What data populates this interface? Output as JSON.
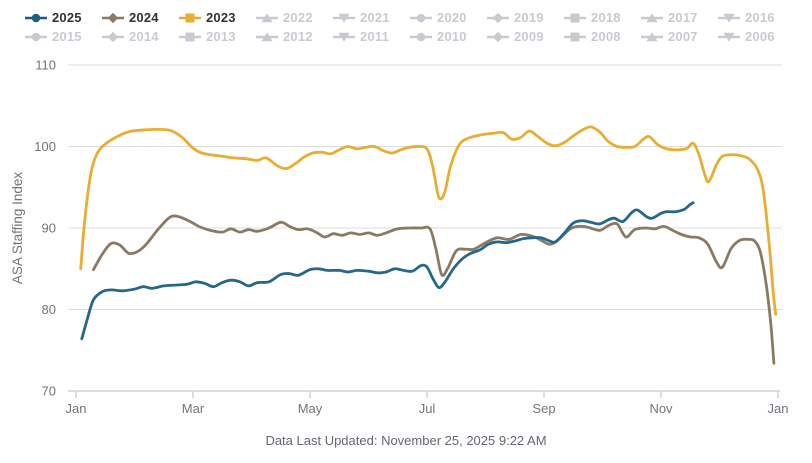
{
  "legend": {
    "active_text_color": "#2e3338",
    "inactive_color": "#c7cbd0",
    "items": [
      {
        "label": "2025",
        "marker": "circle",
        "color": "#1d5f7e",
        "active": true
      },
      {
        "label": "2024",
        "marker": "diamond",
        "color": "#8a7a63",
        "active": true
      },
      {
        "label": "2023",
        "marker": "square",
        "color": "#e9ad33",
        "active": true
      },
      {
        "label": "2022",
        "marker": "triangle-up",
        "color": "#c7cbd0",
        "active": false
      },
      {
        "label": "2021",
        "marker": "triangle-down",
        "color": "#c7cbd0",
        "active": false
      },
      {
        "label": "2020",
        "marker": "circle",
        "color": "#c7cbd0",
        "active": false
      },
      {
        "label": "2019",
        "marker": "diamond",
        "color": "#c7cbd0",
        "active": false
      },
      {
        "label": "2018",
        "marker": "square",
        "color": "#c7cbd0",
        "active": false
      },
      {
        "label": "2017",
        "marker": "triangle-up",
        "color": "#c7cbd0",
        "active": false
      },
      {
        "label": "2016",
        "marker": "triangle-down",
        "color": "#c7cbd0",
        "active": false
      },
      {
        "label": "2015",
        "marker": "circle",
        "color": "#c7cbd0",
        "active": false
      },
      {
        "label": "2014",
        "marker": "diamond",
        "color": "#c7cbd0",
        "active": false
      },
      {
        "label": "2013",
        "marker": "square",
        "color": "#c7cbd0",
        "active": false
      },
      {
        "label": "2012",
        "marker": "triangle-up",
        "color": "#c7cbd0",
        "active": false
      },
      {
        "label": "2011",
        "marker": "triangle-down",
        "color": "#c7cbd0",
        "active": false
      },
      {
        "label": "2010",
        "marker": "circle",
        "color": "#c7cbd0",
        "active": false
      },
      {
        "label": "2009",
        "marker": "diamond",
        "color": "#c7cbd0",
        "active": false
      },
      {
        "label": "2008",
        "marker": "square",
        "color": "#c7cbd0",
        "active": false
      },
      {
        "label": "2007",
        "marker": "triangle-up",
        "color": "#c7cbd0",
        "active": false
      },
      {
        "label": "2006",
        "marker": "triangle-down",
        "color": "#c7cbd0",
        "active": false
      }
    ]
  },
  "chart_data": {
    "type": "line",
    "title": "",
    "xlabel": "",
    "ylabel": "ASA Staffing Index",
    "ylim": [
      70,
      110
    ],
    "y_ticks": [
      70,
      80,
      90,
      100,
      110
    ],
    "x_tick_labels": [
      "Jan",
      "Mar",
      "May",
      "Jul",
      "Sep",
      "Nov",
      "Jan"
    ],
    "x_tick_months": [
      0,
      2,
      4,
      6,
      8,
      10,
      12
    ],
    "x_unit": "month offset within year (0 = Jan, 11.96 = late Dec)",
    "grid": "horizontal",
    "legend_position": "top",
    "axis_text_color": "#70757a",
    "gridline_color": "#dcdcdc",
    "axis_line_color": "#c8d2da",
    "series": [
      {
        "name": "2023",
        "color": "#e9ad33",
        "points": [
          [
            0.08,
            85.0
          ],
          [
            0.15,
            91.0
          ],
          [
            0.25,
            96.5
          ],
          [
            0.35,
            99.0
          ],
          [
            0.5,
            100.3
          ],
          [
            0.7,
            101.2
          ],
          [
            0.9,
            101.8
          ],
          [
            1.1,
            102.0
          ],
          [
            1.35,
            102.1
          ],
          [
            1.6,
            102.0
          ],
          [
            1.8,
            101.2
          ],
          [
            2.0,
            99.8
          ],
          [
            2.15,
            99.2
          ],
          [
            2.3,
            99.0
          ],
          [
            2.5,
            98.8
          ],
          [
            2.7,
            98.6
          ],
          [
            2.9,
            98.5
          ],
          [
            3.1,
            98.3
          ],
          [
            3.25,
            98.6
          ],
          [
            3.45,
            97.6
          ],
          [
            3.6,
            97.3
          ],
          [
            3.75,
            97.9
          ],
          [
            3.9,
            98.7
          ],
          [
            4.05,
            99.2
          ],
          [
            4.2,
            99.3
          ],
          [
            4.35,
            99.1
          ],
          [
            4.5,
            99.6
          ],
          [
            4.65,
            100.0
          ],
          [
            4.8,
            99.7
          ],
          [
            4.95,
            99.9
          ],
          [
            5.1,
            100.0
          ],
          [
            5.25,
            99.5
          ],
          [
            5.4,
            99.2
          ],
          [
            5.55,
            99.6
          ],
          [
            5.7,
            99.9
          ],
          [
            5.85,
            100.0
          ],
          [
            6.0,
            99.7
          ],
          [
            6.1,
            97.5
          ],
          [
            6.2,
            93.8
          ],
          [
            6.3,
            94.3
          ],
          [
            6.4,
            97.5
          ],
          [
            6.55,
            100.2
          ],
          [
            6.7,
            101.0
          ],
          [
            6.9,
            101.4
          ],
          [
            7.1,
            101.6
          ],
          [
            7.3,
            101.7
          ],
          [
            7.45,
            100.9
          ],
          [
            7.6,
            101.1
          ],
          [
            7.75,
            101.9
          ],
          [
            7.9,
            101.2
          ],
          [
            8.05,
            100.4
          ],
          [
            8.2,
            100.1
          ],
          [
            8.35,
            100.5
          ],
          [
            8.5,
            101.3
          ],
          [
            8.65,
            102.0
          ],
          [
            8.8,
            102.4
          ],
          [
            8.95,
            101.8
          ],
          [
            9.1,
            100.6
          ],
          [
            9.25,
            100.0
          ],
          [
            9.4,
            99.9
          ],
          [
            9.55,
            100.0
          ],
          [
            9.7,
            100.9
          ],
          [
            9.8,
            101.2
          ],
          [
            9.95,
            100.2
          ],
          [
            10.1,
            99.7
          ],
          [
            10.3,
            99.6
          ],
          [
            10.45,
            99.8
          ],
          [
            10.55,
            100.4
          ],
          [
            10.65,
            99.0
          ],
          [
            10.75,
            96.5
          ],
          [
            10.82,
            95.7
          ],
          [
            10.95,
            97.8
          ],
          [
            11.05,
            98.8
          ],
          [
            11.2,
            99.0
          ],
          [
            11.35,
            98.9
          ],
          [
            11.5,
            98.5
          ],
          [
            11.65,
            97.2
          ],
          [
            11.75,
            94.5
          ],
          [
            11.85,
            88.0
          ],
          [
            11.92,
            82.0
          ],
          [
            11.96,
            79.4
          ]
        ]
      },
      {
        "name": "2024",
        "color": "#8a7a63",
        "points": [
          [
            0.3,
            84.9
          ],
          [
            0.45,
            86.8
          ],
          [
            0.6,
            88.1
          ],
          [
            0.75,
            87.9
          ],
          [
            0.9,
            86.9
          ],
          [
            1.05,
            87.1
          ],
          [
            1.2,
            88.0
          ],
          [
            1.4,
            89.8
          ],
          [
            1.6,
            91.3
          ],
          [
            1.75,
            91.4
          ],
          [
            1.95,
            90.8
          ],
          [
            2.1,
            90.2
          ],
          [
            2.3,
            89.7
          ],
          [
            2.5,
            89.5
          ],
          [
            2.65,
            89.9
          ],
          [
            2.8,
            89.5
          ],
          [
            2.95,
            89.8
          ],
          [
            3.1,
            89.6
          ],
          [
            3.3,
            90.0
          ],
          [
            3.5,
            90.7
          ],
          [
            3.65,
            90.2
          ],
          [
            3.8,
            89.8
          ],
          [
            3.95,
            89.9
          ],
          [
            4.1,
            89.5
          ],
          [
            4.25,
            88.9
          ],
          [
            4.4,
            89.3
          ],
          [
            4.55,
            89.1
          ],
          [
            4.7,
            89.4
          ],
          [
            4.85,
            89.2
          ],
          [
            5.0,
            89.4
          ],
          [
            5.15,
            89.1
          ],
          [
            5.3,
            89.4
          ],
          [
            5.5,
            89.9
          ],
          [
            5.7,
            90.0
          ],
          [
            5.9,
            90.0
          ],
          [
            6.05,
            89.9
          ],
          [
            6.15,
            87.5
          ],
          [
            6.25,
            84.3
          ],
          [
            6.35,
            85.0
          ],
          [
            6.5,
            87.2
          ],
          [
            6.65,
            87.4
          ],
          [
            6.8,
            87.4
          ],
          [
            7.0,
            88.2
          ],
          [
            7.2,
            88.8
          ],
          [
            7.4,
            88.6
          ],
          [
            7.6,
            89.2
          ],
          [
            7.8,
            89.0
          ],
          [
            7.95,
            88.5
          ],
          [
            8.1,
            88.0
          ],
          [
            8.25,
            88.6
          ],
          [
            8.45,
            89.9
          ],
          [
            8.6,
            90.2
          ],
          [
            8.75,
            90.1
          ],
          [
            8.95,
            89.7
          ],
          [
            9.1,
            90.3
          ],
          [
            9.25,
            90.5
          ],
          [
            9.4,
            88.9
          ],
          [
            9.55,
            89.8
          ],
          [
            9.75,
            90.0
          ],
          [
            9.9,
            89.9
          ],
          [
            10.05,
            90.2
          ],
          [
            10.2,
            89.7
          ],
          [
            10.35,
            89.2
          ],
          [
            10.5,
            88.9
          ],
          [
            10.65,
            88.8
          ],
          [
            10.8,
            88.0
          ],
          [
            10.95,
            85.8
          ],
          [
            11.05,
            85.2
          ],
          [
            11.2,
            87.5
          ],
          [
            11.35,
            88.5
          ],
          [
            11.5,
            88.6
          ],
          [
            11.6,
            88.4
          ],
          [
            11.7,
            87.0
          ],
          [
            11.8,
            83.0
          ],
          [
            11.88,
            78.0
          ],
          [
            11.93,
            73.4
          ]
        ]
      },
      {
        "name": "2025",
        "color": "#25688a",
        "points": [
          [
            0.1,
            76.4
          ],
          [
            0.2,
            79.0
          ],
          [
            0.3,
            81.2
          ],
          [
            0.45,
            82.2
          ],
          [
            0.6,
            82.4
          ],
          [
            0.8,
            82.3
          ],
          [
            1.0,
            82.5
          ],
          [
            1.15,
            82.8
          ],
          [
            1.3,
            82.6
          ],
          [
            1.5,
            82.9
          ],
          [
            1.7,
            83.0
          ],
          [
            1.9,
            83.1
          ],
          [
            2.05,
            83.4
          ],
          [
            2.2,
            83.2
          ],
          [
            2.35,
            82.8
          ],
          [
            2.5,
            83.3
          ],
          [
            2.65,
            83.6
          ],
          [
            2.8,
            83.4
          ],
          [
            2.95,
            82.9
          ],
          [
            3.1,
            83.3
          ],
          [
            3.3,
            83.4
          ],
          [
            3.5,
            84.3
          ],
          [
            3.65,
            84.4
          ],
          [
            3.8,
            84.2
          ],
          [
            4.0,
            84.9
          ],
          [
            4.15,
            85.0
          ],
          [
            4.3,
            84.8
          ],
          [
            4.5,
            84.8
          ],
          [
            4.65,
            84.6
          ],
          [
            4.8,
            84.8
          ],
          [
            5.0,
            84.7
          ],
          [
            5.15,
            84.5
          ],
          [
            5.3,
            84.6
          ],
          [
            5.45,
            85.0
          ],
          [
            5.6,
            84.8
          ],
          [
            5.75,
            84.7
          ],
          [
            5.9,
            85.4
          ],
          [
            6.0,
            85.2
          ],
          [
            6.1,
            83.8
          ],
          [
            6.2,
            82.7
          ],
          [
            6.3,
            83.3
          ],
          [
            6.45,
            85.0
          ],
          [
            6.6,
            86.2
          ],
          [
            6.75,
            86.9
          ],
          [
            6.9,
            87.3
          ],
          [
            7.05,
            88.0
          ],
          [
            7.2,
            88.3
          ],
          [
            7.35,
            88.2
          ],
          [
            7.5,
            88.4
          ],
          [
            7.65,
            88.7
          ],
          [
            7.8,
            88.8
          ],
          [
            7.95,
            88.8
          ],
          [
            8.1,
            88.4
          ],
          [
            8.2,
            88.3
          ],
          [
            8.35,
            89.4
          ],
          [
            8.5,
            90.6
          ],
          [
            8.65,
            90.9
          ],
          [
            8.8,
            90.7
          ],
          [
            8.95,
            90.5
          ],
          [
            9.1,
            91.0
          ],
          [
            9.2,
            91.2
          ],
          [
            9.35,
            90.8
          ],
          [
            9.5,
            91.9
          ],
          [
            9.6,
            92.2
          ],
          [
            9.75,
            91.4
          ],
          [
            9.85,
            91.2
          ],
          [
            10.0,
            91.8
          ],
          [
            10.1,
            92.0
          ],
          [
            10.25,
            92.0
          ],
          [
            10.4,
            92.3
          ],
          [
            10.5,
            92.9
          ],
          [
            10.55,
            93.1
          ]
        ]
      }
    ]
  },
  "footer": {
    "last_updated": "Data Last Updated: November 25, 2025 9:22 AM"
  }
}
